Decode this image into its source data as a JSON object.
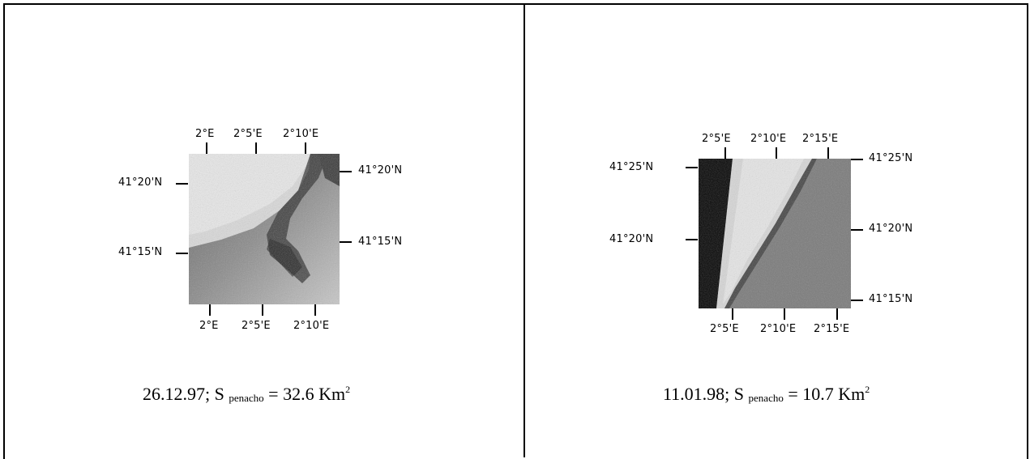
{
  "left_panel": {
    "top_ticks": [
      "2°E",
      "2°5'E",
      "2°10'E"
    ],
    "bottom_ticks": [
      "2°E",
      "2°5'E",
      "2°10'E"
    ],
    "left_ticks": [
      "41°20'N",
      "41°15'N"
    ],
    "right_ticks": [
      "41°20'N",
      "41°15'N"
    ],
    "caption": {
      "date": "26.12.97; S",
      "subscript": "penacho",
      "value": "= 32.6 Km",
      "superscript": "2"
    }
  },
  "right_panel": {
    "top_ticks": [
      "2°5'E",
      "2°10'E",
      "2°15'E"
    ],
    "bottom_ticks": [
      "2°5'E",
      "2°10'E",
      "2°15'E"
    ],
    "left_ticks": [
      "41°25'N",
      "41°20'N"
    ],
    "right_ticks": [
      "41°25'N",
      "41°20'N",
      "41°15'N"
    ],
    "caption": {
      "date": "11.01.98; S",
      "subscript": "penacho",
      "value": "= 10.7 Km",
      "superscript": "2"
    }
  }
}
